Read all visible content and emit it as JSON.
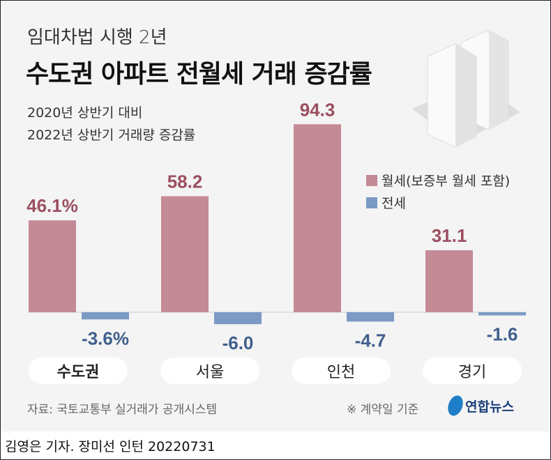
{
  "header": {
    "kicker": "임대차법 시행 2년",
    "title": "수도권 아파트 전월세 거래 증감률",
    "subtitle_line1": "2020년 상반기 대비",
    "subtitle_line2": "2022년 상반기 거래량 증감률"
  },
  "chart_data": {
    "type": "bar",
    "categories": [
      "수도권",
      "서울",
      "인천",
      "경기"
    ],
    "series": [
      {
        "name": "월세(보증부 월세 포함)",
        "values": [
          46.1,
          58.2,
          94.3,
          31.1
        ],
        "color": "#c48a96",
        "labels": [
          "46.1%",
          "58.2",
          "94.3",
          "31.1"
        ],
        "label_color": "#9b4f60"
      },
      {
        "name": "전세",
        "values": [
          -3.6,
          -6.0,
          -4.7,
          -1.6
        ],
        "color": "#7b9ac4",
        "labels": [
          "-3.6%",
          "-6.0",
          "-4.7",
          "-1.6"
        ],
        "label_color": "#3f5f8c"
      }
    ],
    "legend_placement": "right",
    "grid": false
  },
  "footer": {
    "source": "자료: 국토교통부 실거래가 공개시스템",
    "note": "※ 계약일 기준",
    "logo": "연합뉴스",
    "credit": "김영은 기자. 장미선 인턴  20220731"
  }
}
